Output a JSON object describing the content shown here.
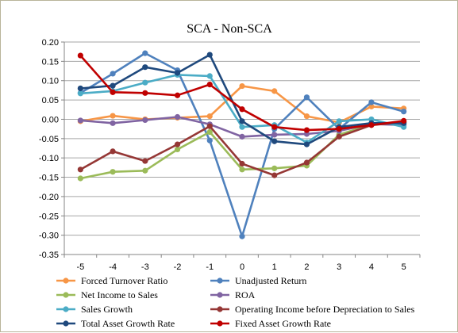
{
  "chart_data": {
    "type": "line",
    "title": "SCA - Non-SCA",
    "xlabel": "",
    "ylabel": "",
    "x": [
      -5,
      -4,
      -3,
      -2,
      -1,
      0,
      1,
      2,
      3,
      4,
      5
    ],
    "x_tick_labels": [
      "-5",
      "-4",
      "-3",
      "-2",
      "-1",
      "0",
      "1",
      "2",
      "3",
      "4",
      "5"
    ],
    "ylim": [
      -0.35,
      0.2
    ],
    "y_ticks": [
      0.2,
      0.15,
      0.1,
      0.05,
      0.0,
      -0.05,
      -0.1,
      -0.15,
      -0.2,
      -0.25,
      -0.3,
      -0.35
    ],
    "y_tick_labels": [
      "0.20",
      "0.15",
      "0.10",
      "0.05",
      "0.00",
      "-0.05",
      "-0.10",
      "-0.15",
      "-0.20",
      "-0.25",
      "-0.30",
      "-0.35"
    ],
    "grid": true,
    "legend_position": "bottom",
    "series": [
      {
        "name": "Forced Turnover Ratio",
        "color": "#f79646",
        "values": [
          -0.005,
          0.009,
          0.0,
          0.004,
          0.008,
          0.086,
          0.073,
          0.008,
          -0.008,
          0.033,
          0.028
        ]
      },
      {
        "name": "Unadjusted Return",
        "color": "#4f81bd",
        "values": [
          0.068,
          0.118,
          0.171,
          0.127,
          -0.055,
          -0.303,
          -0.025,
          0.057,
          -0.025,
          0.044,
          0.02
        ]
      },
      {
        "name": "Net Income to Sales",
        "color": "#9bbb59",
        "values": [
          -0.153,
          -0.136,
          -0.133,
          -0.078,
          -0.033,
          -0.13,
          -0.127,
          -0.12,
          -0.04,
          -0.013,
          -0.007
        ]
      },
      {
        "name": "ROA",
        "color": "#8064a2",
        "values": [
          -0.003,
          -0.01,
          -0.002,
          0.006,
          -0.013,
          -0.045,
          -0.04,
          -0.038,
          -0.03,
          -0.012,
          -0.015
        ]
      },
      {
        "name": "Sales Growth",
        "color": "#4bacc6",
        "values": [
          0.067,
          0.073,
          0.095,
          0.115,
          0.112,
          -0.02,
          -0.015,
          -0.06,
          -0.005,
          0.0,
          -0.02
        ]
      },
      {
        "name": "Operating Income before Depreciation to Sales",
        "color": "#953735",
        "values": [
          -0.13,
          -0.083,
          -0.108,
          -0.065,
          -0.018,
          -0.115,
          -0.145,
          -0.112,
          -0.045,
          -0.015,
          -0.007
        ]
      },
      {
        "name": "Total Asset Growth Rate",
        "color": "#1f497d",
        "values": [
          0.08,
          0.087,
          0.135,
          0.12,
          0.167,
          -0.005,
          -0.057,
          -0.065,
          -0.02,
          -0.01,
          -0.01
        ]
      },
      {
        "name": "Fixed Asset Growth Rate",
        "color": "#c00000",
        "values": [
          0.165,
          0.07,
          0.068,
          0.062,
          0.09,
          0.026,
          -0.02,
          -0.028,
          -0.025,
          -0.015,
          -0.004
        ]
      }
    ]
  }
}
